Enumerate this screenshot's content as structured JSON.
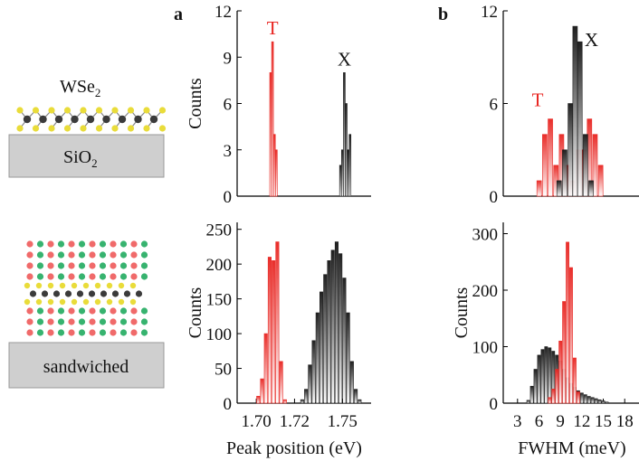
{
  "colors": {
    "trion": "#e8231f",
    "exciton": "#151515",
    "substrate": "#cfcfcf",
    "se": "#e9dc3a",
    "w": "#3b3b3b",
    "bn_red": "#f06a6a",
    "bn_green": "#37b36f"
  },
  "illustration": {
    "top_material": "WSe",
    "top_material_sub": "2",
    "top_substrate": "SiO",
    "top_substrate_sub": "2",
    "bottom_substrate": "sandwiched"
  },
  "panel_letters": {
    "a": "a",
    "b": "b"
  },
  "bottom_xlabels": {
    "a": "Peak position (eV)",
    "b": "FWHM (meV)"
  },
  "chart_data": [
    {
      "id": "a-top",
      "type": "bar",
      "panel": "a",
      "ylabel": "Counts",
      "ylim": [
        0,
        12
      ],
      "xlim": [
        1.69,
        1.76
      ],
      "yticks": [
        "0",
        "3",
        "6",
        "9",
        "12"
      ],
      "annotations": [
        {
          "text": "T",
          "series": "T"
        },
        {
          "text": "X",
          "series": "X"
        }
      ],
      "series": [
        {
          "name": "T",
          "x": [
            1.7075,
            1.7085,
            1.7095,
            1.7105
          ],
          "values": [
            8,
            10,
            4,
            3
          ]
        },
        {
          "name": "X",
          "x": [
            1.744,
            1.745,
            1.746,
            1.747,
            1.748,
            1.749
          ],
          "values": [
            2,
            3,
            8,
            6,
            3,
            4
          ]
        }
      ]
    },
    {
      "id": "a-bottom",
      "type": "bar",
      "panel": "a",
      "ylabel": "Counts",
      "ylim": [
        0,
        260
      ],
      "xlim": [
        1.69,
        1.76
      ],
      "xticks": [
        "1.70",
        "1.72",
        "1.75"
      ],
      "xtick_values": [
        1.7,
        1.72,
        1.745
      ],
      "yticks": [
        "0",
        "50",
        "100",
        "150",
        "200",
        "250"
      ],
      "series": [
        {
          "name": "T",
          "x": [
            1.701,
            1.703,
            1.705,
            1.707,
            1.709,
            1.711,
            1.713,
            1.715
          ],
          "values": [
            10,
            35,
            100,
            210,
            205,
            232,
            60,
            5
          ]
        },
        {
          "name": "X",
          "x": [
            1.724,
            1.726,
            1.728,
            1.73,
            1.732,
            1.734,
            1.736,
            1.738,
            1.74,
            1.742,
            1.744,
            1.746,
            1.748,
            1.75,
            1.752,
            1.754
          ],
          "values": [
            5,
            20,
            55,
            90,
            130,
            160,
            185,
            205,
            220,
            232,
            215,
            180,
            130,
            60,
            20,
            5
          ]
        }
      ]
    },
    {
      "id": "b-top",
      "type": "bar",
      "panel": "b",
      "ylabel": "",
      "ylim": [
        0,
        12
      ],
      "xlim": [
        1,
        18
      ],
      "yticks": [
        "0",
        "6",
        "12"
      ],
      "annotations": [
        {
          "text": "T",
          "series": "T"
        },
        {
          "text": "X",
          "series": "X"
        }
      ],
      "series": [
        {
          "name": "T",
          "x": [
            5.5,
            6.2,
            6.9,
            7.6,
            8.3,
            9.0,
            9.7,
            10.4,
            11.1,
            11.8,
            12.5,
            13.2
          ],
          "values": [
            1,
            4,
            5,
            2,
            4,
            2,
            1,
            3,
            3,
            5,
            4,
            2
          ]
        },
        {
          "name": "X",
          "x": [
            8.0,
            8.7,
            9.4,
            10.0,
            10.6,
            11.3,
            12.0
          ],
          "values": [
            1,
            3,
            6,
            11,
            10,
            4,
            1
          ]
        }
      ]
    },
    {
      "id": "b-bottom",
      "type": "bar",
      "panel": "b",
      "ylabel": "Counts",
      "ylim": [
        0,
        320
      ],
      "xlim": [
        1,
        20
      ],
      "xticks": [
        "3",
        "6",
        "9",
        "12",
        "15",
        "18"
      ],
      "xtick_values": [
        3,
        6,
        9,
        12,
        15,
        18
      ],
      "yticks": [
        "0",
        "100",
        "200",
        "300"
      ],
      "series": [
        {
          "name": "X",
          "x": [
            4.5,
            5.0,
            5.5,
            6.0,
            6.5,
            7.0,
            7.5,
            8.0,
            8.5,
            9.0,
            9.5,
            10.0,
            10.5,
            11.0,
            11.5,
            12.0,
            12.5,
            13.0,
            13.5,
            14.0,
            14.5,
            15.0,
            15.5
          ],
          "values": [
            5,
            30,
            60,
            85,
            95,
            100,
            98,
            92,
            85,
            75,
            60,
            45,
            35,
            28,
            22,
            18,
            15,
            12,
            10,
            8,
            6,
            4,
            2
          ]
        },
        {
          "name": "T",
          "x": [
            7.5,
            8.0,
            8.5,
            9.0,
            9.5,
            10.0,
            10.5,
            11.0,
            11.5
          ],
          "values": [
            10,
            25,
            60,
            110,
            180,
            285,
            240,
            80,
            20
          ]
        }
      ]
    }
  ]
}
